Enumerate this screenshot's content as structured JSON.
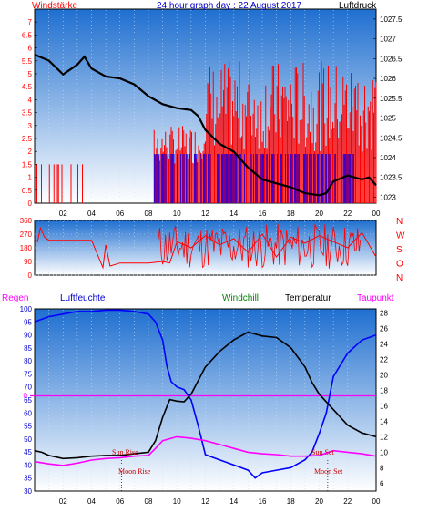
{
  "colors": {
    "plot_top": "#1f6fd0",
    "plot_bottom": "#ffffff",
    "frame": "#000000",
    "wind": "#ff0000",
    "wind_gust": "#0000ff",
    "pressure": "#000000",
    "humidity": "#0000ff",
    "windchill": "#008000",
    "temperature": "#000000",
    "dewpoint": "#ff00ff",
    "marker_sun": "#cc0000",
    "grid": "#c8dcf2"
  },
  "chart_data": [
    {
      "id": "wind_pressure",
      "type": "line",
      "title": "24 hour graph day : 22 August 2017",
      "left_label": "Windstärke",
      "right_label": "Luftdruck",
      "x_ticks": [
        "02",
        "04",
        "06",
        "08",
        "10",
        "12",
        "14",
        "16",
        "18",
        "20",
        "22",
        "00"
      ],
      "y_left_ticks": [
        "0",
        "0.5",
        "1",
        "1.5",
        "2",
        "2.5",
        "3",
        "3.5",
        "4",
        "4.5",
        "5",
        "5.5",
        "6",
        "6.5",
        "7"
      ],
      "y_right_ticks": [
        "1023",
        "1023.5",
        "1024",
        "1024.5",
        "1025",
        "1025.5",
        "1026",
        "1026.5",
        "1027",
        "1027.5"
      ],
      "y_left_range": [
        0,
        7.5
      ],
      "y_right_range": [
        1022.85,
        1027.75
      ],
      "series": [
        {
          "name": "Luftdruck",
          "axis": "right",
          "x": [
            0.0,
            1.0,
            2.0,
            3.0,
            3.5,
            4.0,
            5.0,
            6.0,
            7.0,
            8.0,
            9.0,
            10.0,
            11.0,
            11.5,
            12.0,
            13.0,
            14.0,
            15.0,
            16.0,
            17.0,
            18.0,
            19.0,
            20.0,
            20.5,
            21.0,
            22.0,
            23.0,
            23.5,
            24.0
          ],
          "y": [
            1026.6,
            1026.45,
            1026.1,
            1026.35,
            1026.55,
            1026.25,
            1026.05,
            1026.0,
            1025.85,
            1025.55,
            1025.35,
            1025.25,
            1025.2,
            1025.05,
            1024.7,
            1024.35,
            1024.15,
            1023.75,
            1023.45,
            1023.35,
            1023.25,
            1023.1,
            1023.05,
            1023.1,
            1023.4,
            1023.55,
            1023.45,
            1023.5,
            1023.3
          ]
        }
      ]
    },
    {
      "id": "wind_direction",
      "type": "line",
      "y_left_ticks": [
        "0",
        "90",
        "180",
        "270",
        "360"
      ],
      "y_right_ticks": [
        "N",
        "W",
        "S",
        "O",
        "N"
      ],
      "y_range": [
        0,
        360
      ],
      "series": [
        {
          "name": "Windrichtung",
          "x": [
            0.0,
            0.2,
            0.4,
            0.7,
            1.0,
            4.0,
            4.8,
            5.0,
            5.3,
            6.0,
            8.0,
            9.0,
            9.5,
            10.0,
            11.0,
            12.0,
            13.0,
            14.0,
            15.0,
            16.0,
            17.0,
            18.0,
            19.0,
            20.0,
            21.0,
            22.0,
            23.0,
            24.0
          ],
          "y": [
            240,
            220,
            310,
            250,
            230,
            230,
            50,
            200,
            60,
            80,
            80,
            90,
            80,
            220,
            180,
            260,
            200,
            240,
            150,
            270,
            120,
            250,
            210,
            260,
            220,
            180,
            280,
            120
          ]
        }
      ]
    },
    {
      "id": "humidity_temperature",
      "type": "line",
      "legend": [
        "Regen",
        "Luftfeuchte",
        "Windchill",
        "Temperatur",
        "Taupunkt"
      ],
      "annotations": [
        "Sun Rise",
        "Moon Rise",
        "Sun Set",
        "Moon Set"
      ],
      "y_left_label_value": "0",
      "y_left_ticks": [
        "30",
        "35",
        "40",
        "45",
        "50",
        "55",
        "60",
        "65",
        "70",
        "75",
        "80",
        "85",
        "90",
        "95",
        "100"
      ],
      "y_right_ticks": [
        "6",
        "8",
        "10",
        "12",
        "14",
        "16",
        "18",
        "20",
        "22",
        "24",
        "26",
        "28"
      ],
      "y_left_range": [
        30,
        100
      ],
      "y_right_range": [
        5,
        28.5
      ],
      "series": [
        {
          "name": "Luftfeuchte",
          "axis": "left",
          "x": [
            0.0,
            0.5,
            1.0,
            2.0,
            3.0,
            4.0,
            5.0,
            6.0,
            7.0,
            8.0,
            8.5,
            9.0,
            9.3,
            9.6,
            10.0,
            10.5,
            11.0,
            11.5,
            12.0,
            13.0,
            14.0,
            15.0,
            15.5,
            16.0,
            17.0,
            18.0,
            19.0,
            19.5,
            20.0,
            20.5,
            21.0,
            22.0,
            23.0,
            24.0
          ],
          "y": [
            95,
            96,
            97,
            98,
            99,
            99,
            99.5,
            99.5,
            99,
            98,
            95,
            88,
            78,
            72,
            70,
            69,
            65,
            55,
            44,
            42,
            40,
            38,
            35,
            37,
            38,
            39,
            42,
            45,
            52,
            60,
            74,
            83,
            88,
            90
          ]
        },
        {
          "name": "Temperatur",
          "axis": "right",
          "x": [
            0.0,
            0.5,
            1.0,
            2.0,
            3.0,
            4.0,
            5.0,
            6.0,
            7.0,
            8.0,
            8.5,
            9.0,
            9.5,
            10.0,
            10.5,
            11.0,
            12.0,
            13.0,
            14.0,
            15.0,
            16.0,
            17.0,
            18.0,
            19.0,
            19.5,
            20.0,
            21.0,
            22.0,
            23.0,
            24.0
          ],
          "y": [
            10.2,
            10.0,
            9.6,
            9.2,
            9.3,
            9.5,
            9.6,
            9.6,
            9.8,
            10.0,
            11.5,
            14.5,
            16.8,
            16.6,
            16.5,
            17.5,
            21.0,
            23.0,
            24.5,
            25.5,
            25.0,
            24.8,
            23.5,
            21.0,
            19.0,
            17.5,
            15.5,
            13.5,
            12.5,
            12.0
          ]
        },
        {
          "name": "Taupunkt",
          "axis": "right",
          "x": [
            0.0,
            1.0,
            2.0,
            3.0,
            4.0,
            5.0,
            6.0,
            7.0,
            8.0,
            8.5,
            9.0,
            10.0,
            11.0,
            12.0,
            13.0,
            14.0,
            15.0,
            16.0,
            17.0,
            18.0,
            19.0,
            20.0,
            21.0,
            22.0,
            23.0,
            24.0
          ],
          "y": [
            8.8,
            8.5,
            8.3,
            8.6,
            9.0,
            9.2,
            9.3,
            9.5,
            9.6,
            10.5,
            11.5,
            12.0,
            11.8,
            11.5,
            11.0,
            10.5,
            10.0,
            9.8,
            9.7,
            9.5,
            9.5,
            9.6,
            10.2,
            10.0,
            9.8,
            9.5
          ]
        }
      ],
      "reference_line": {
        "name": "Regen",
        "value": 0
      }
    }
  ]
}
